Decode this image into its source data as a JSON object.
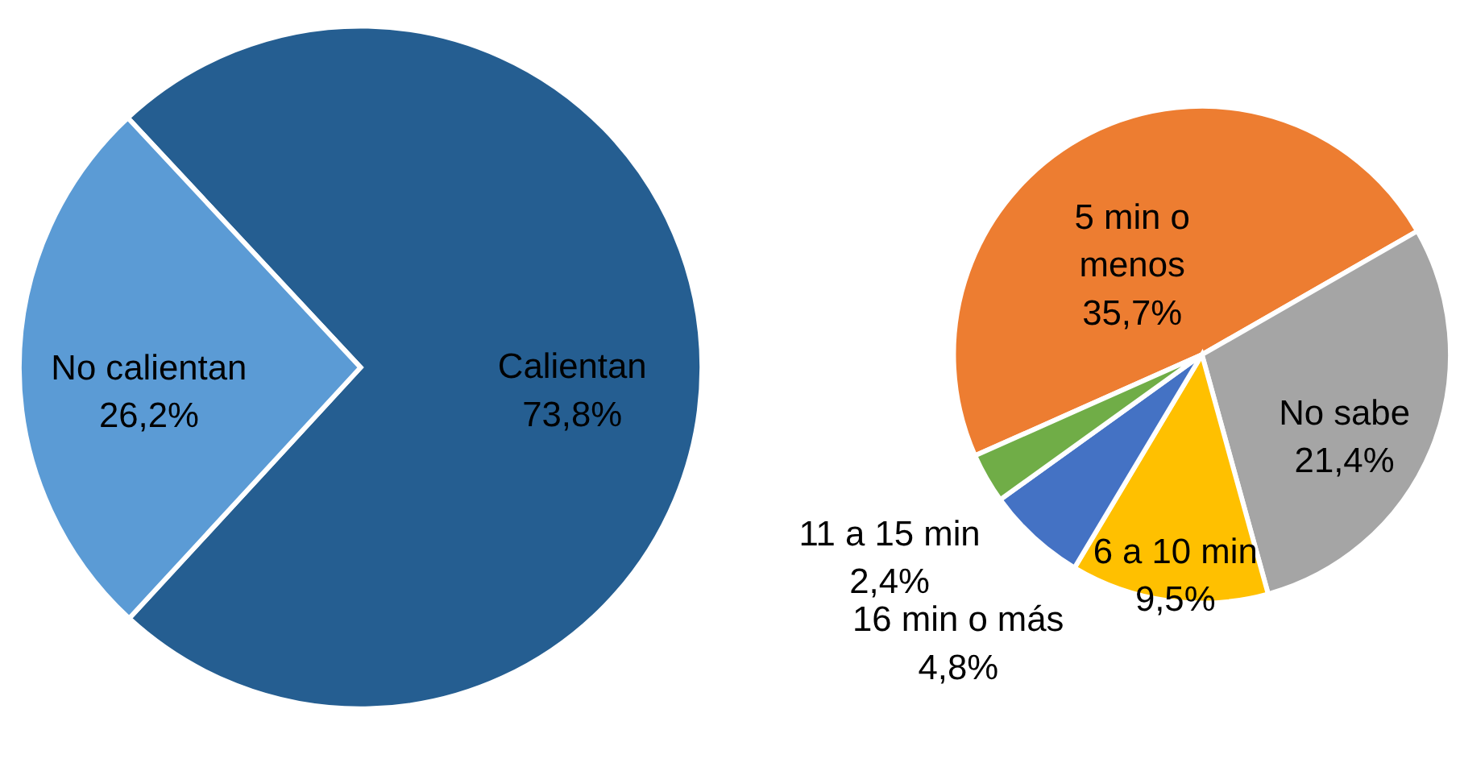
{
  "chart_data": [
    {
      "type": "pie",
      "categories": [
        "Calientan",
        "No calientan"
      ],
      "values": [
        73.8,
        26.2
      ],
      "colors": [
        "#255e91",
        "#5b9bd5"
      ],
      "value_labels": [
        "73,8%",
        "26,2%"
      ],
      "legend": false
    },
    {
      "type": "pie",
      "categories": [
        "5 min o menos",
        "No sabe",
        "6 a 10 min",
        "16 min o más",
        "11 a 15 min"
      ],
      "values": [
        35.7,
        21.4,
        9.5,
        4.8,
        2.4
      ],
      "colors": [
        "#ed7d31",
        "#a5a5a5",
        "#ffc000",
        "#4472c4",
        "#70ad47"
      ],
      "value_labels": [
        "35,7%",
        "21,4%",
        "9,5%",
        "4,8%",
        "2,4%"
      ],
      "legend": false
    }
  ]
}
